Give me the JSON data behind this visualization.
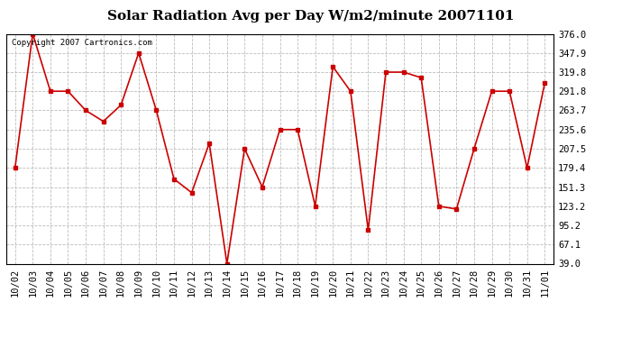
{
  "title": "Solar Radiation Avg per Day W/m2/minute 20071101",
  "copyright_text": "Copyright 2007 Cartronics.com",
  "x_labels": [
    "10/02",
    "10/03",
    "10/04",
    "10/05",
    "10/06",
    "10/07",
    "10/08",
    "10/09",
    "10/10",
    "10/11",
    "10/12",
    "10/13",
    "10/14",
    "10/15",
    "10/16",
    "10/17",
    "10/18",
    "10/19",
    "10/20",
    "10/21",
    "10/22",
    "10/23",
    "10/24",
    "10/25",
    "10/26",
    "10/27",
    "10/28",
    "10/29",
    "10/30",
    "10/31",
    "11/01"
  ],
  "y_values": [
    179.4,
    376.0,
    291.8,
    291.8,
    263.7,
    247.6,
    271.6,
    347.9,
    263.7,
    163.2,
    143.1,
    215.5,
    39.0,
    207.5,
    151.3,
    235.6,
    235.6,
    123.2,
    327.8,
    291.8,
    88.1,
    319.8,
    319.8,
    311.7,
    123.2,
    119.1,
    207.5,
    291.8,
    291.8,
    179.4,
    303.7
  ],
  "line_color": "#cc0000",
  "marker": "s",
  "marker_size": 2.5,
  "line_width": 1.2,
  "y_ticks": [
    39.0,
    67.1,
    95.2,
    123.2,
    151.3,
    179.4,
    207.5,
    235.6,
    263.7,
    291.8,
    319.8,
    347.9,
    376.0
  ],
  "y_min": 39.0,
  "y_max": 376.0,
  "bg_color": "#ffffff",
  "grid_color": "#bbbbbb",
  "title_fontsize": 11,
  "copyright_fontsize": 6.5,
  "tick_fontsize": 7.5
}
